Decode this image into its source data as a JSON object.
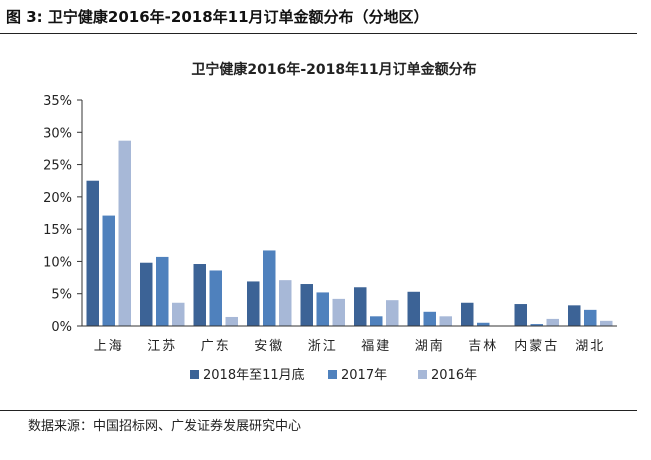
{
  "figure": {
    "label": "图 3:",
    "title": "卫宁健康2016年-2018年11月订单金额分布（分地区）",
    "source": "数据来源：中国招标网、广发证券发展研究中心"
  },
  "chart_data": {
    "type": "bar",
    "title": "卫宁健康2016年-2018年11月订单金额分布",
    "categories": [
      "上海",
      "江苏",
      "广东",
      "安徽",
      "浙江",
      "福建",
      "湖南",
      "吉林",
      "内蒙古",
      "湖北"
    ],
    "series": [
      {
        "name": "2018年至11月底",
        "color": "#3C6396",
        "values": [
          22.5,
          9.8,
          9.6,
          6.9,
          6.5,
          6.0,
          5.3,
          3.6,
          3.4,
          3.2
        ]
      },
      {
        "name": "2017年",
        "color": "#4F81BD",
        "values": [
          17.1,
          10.7,
          8.6,
          11.7,
          5.2,
          1.5,
          2.2,
          0.5,
          0.3,
          2.5
        ]
      },
      {
        "name": "2016年",
        "color": "#A7B8D7",
        "values": [
          28.7,
          3.6,
          1.4,
          7.1,
          4.2,
          4.0,
          1.5,
          0.0,
          1.1,
          0.8
        ]
      }
    ],
    "yticks": [
      "0%",
      "5%",
      "10%",
      "15%",
      "20%",
      "25%",
      "30%",
      "35%"
    ],
    "ylim": [
      0,
      35
    ],
    "grid": false,
    "legend": "bottom"
  }
}
